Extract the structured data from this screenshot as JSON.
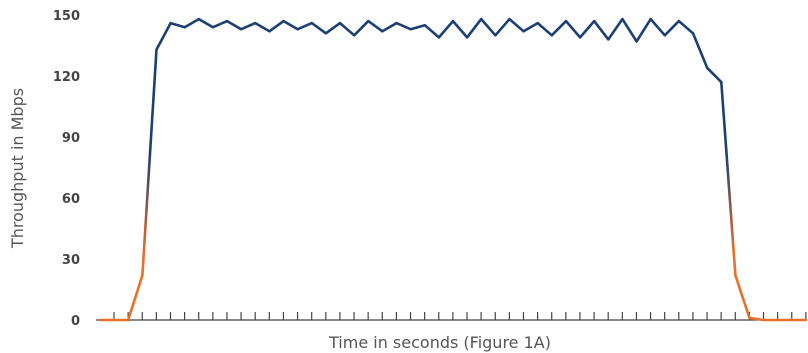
{
  "chart_data": {
    "type": "line",
    "xlabel": "Time in seconds (Figure 1A)",
    "ylabel": "Throughput in Mbps",
    "ylim": [
      0,
      150
    ],
    "yticks": [
      "0",
      "30",
      "60",
      "90",
      "120",
      "150"
    ],
    "xlim": [
      0,
      50
    ],
    "grid": false,
    "x": [
      0,
      1,
      2,
      3,
      4,
      5,
      6,
      7,
      8,
      9,
      10,
      11,
      12,
      13,
      14,
      15,
      16,
      17,
      18,
      19,
      20,
      21,
      22,
      23,
      24,
      25,
      26,
      27,
      28,
      29,
      30,
      31,
      32,
      33,
      34,
      35,
      36,
      37,
      38,
      39,
      40,
      41,
      42,
      43,
      44,
      45,
      46,
      47,
      48,
      49,
      50
    ],
    "series": [
      {
        "values": [
          0,
          0,
          0,
          22,
          133,
          146,
          144,
          148,
          144,
          147,
          143,
          146,
          142,
          147,
          143,
          146,
          141,
          146,
          140,
          147,
          142,
          146,
          143,
          145,
          139,
          147,
          139,
          148,
          140,
          148,
          142,
          146,
          140,
          147,
          139,
          147,
          138,
          148,
          137,
          148,
          140,
          147,
          141,
          124,
          117,
          22,
          1,
          0,
          0,
          0,
          0
        ],
        "colors": {
          "high": "#1c3f74",
          "low": "#e8702a"
        }
      }
    ]
  }
}
